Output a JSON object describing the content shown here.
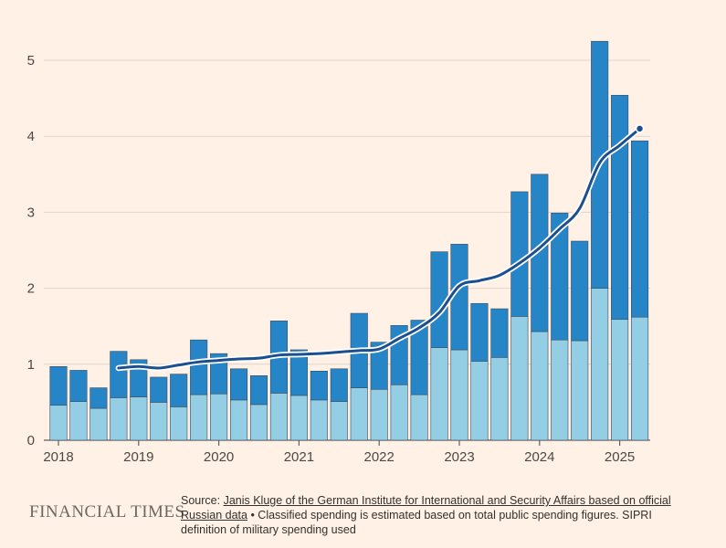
{
  "chart_data": {
    "type": "bar",
    "stacked": true,
    "x": [
      "2018 Q1",
      "2018 Q2",
      "2018 Q3",
      "2018 Q4",
      "2019 Q1",
      "2019 Q2",
      "2019 Q3",
      "2019 Q4",
      "2020 Q1",
      "2020 Q2",
      "2020 Q3",
      "2020 Q4",
      "2021 Q1",
      "2021 Q2",
      "2021 Q3",
      "2021 Q4",
      "2022 Q1",
      "2022 Q2",
      "2022 Q3",
      "2022 Q4",
      "2023 Q1",
      "2023 Q2",
      "2023 Q3",
      "2023 Q4",
      "2024 Q1",
      "2024 Q2",
      "2024 Q3",
      "2024 Q4",
      "2025 Q1",
      "2025 Q2"
    ],
    "series": [
      {
        "values": [
          0.46,
          0.51,
          0.42,
          0.56,
          0.57,
          0.5,
          0.44,
          0.6,
          0.61,
          0.53,
          0.47,
          0.62,
          0.59,
          0.53,
          0.51,
          0.69,
          0.67,
          0.73,
          0.6,
          1.22,
          1.19,
          1.04,
          1.09,
          1.63,
          1.43,
          1.32,
          1.31,
          2.0,
          1.59,
          1.62
        ],
        "color": "#94cee5"
      },
      {
        "values": [
          0.51,
          0.41,
          0.27,
          0.61,
          0.49,
          0.33,
          0.43,
          0.72,
          0.53,
          0.41,
          0.38,
          0.95,
          0.6,
          0.38,
          0.43,
          0.98,
          0.62,
          0.78,
          0.98,
          1.26,
          1.39,
          0.76,
          0.64,
          1.64,
          2.07,
          1.67,
          1.31,
          3.25,
          2.95,
          2.32
        ],
        "color": "#2685c6"
      }
    ],
    "trend": {
      "x": [
        3,
        4,
        5,
        6,
        7,
        8,
        9,
        10,
        11,
        12,
        13,
        14,
        15,
        16,
        17,
        18,
        19,
        20,
        21,
        22,
        23,
        24,
        25,
        26,
        27,
        28,
        29
      ],
      "values": [
        0.95,
        0.97,
        0.95,
        0.99,
        1.03,
        1.05,
        1.07,
        1.08,
        1.12,
        1.13,
        1.14,
        1.16,
        1.18,
        1.2,
        1.34,
        1.48,
        1.68,
        2.03,
        2.1,
        2.17,
        2.33,
        2.53,
        2.78,
        3.05,
        3.65,
        3.88,
        4.1
      ],
      "color": "#1c4f8f"
    },
    "x_tick_labels": [
      "2018",
      "2019",
      "2020",
      "2021",
      "2022",
      "2023",
      "2024",
      "2025"
    ],
    "x_tick_index": [
      0,
      4,
      8,
      12,
      16,
      20,
      24,
      28
    ],
    "y_ticks": [
      "0",
      "1",
      "2",
      "3",
      "4",
      "5"
    ],
    "ylim": [
      0,
      5.3
    ],
    "grid": true
  },
  "footer": {
    "brand": "FINANCIAL TIMES",
    "source_prefix": "Source: ",
    "source_link": "Janis Kluge of the German Institute for International and Security Affairs based on official Russian data",
    "source_note": " • Classified spending is estimated based on total public spending figures. SIPRI definition of military spending used"
  }
}
